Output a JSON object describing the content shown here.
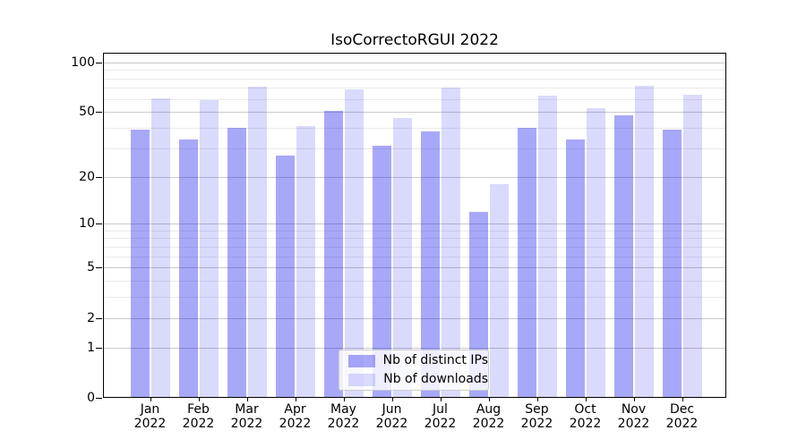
{
  "chart_data": {
    "type": "bar",
    "title": "IsoCorrectoRGUI 2022",
    "categories": [
      "Jan",
      "Feb",
      "Mar",
      "Apr",
      "May",
      "Jun",
      "Jul",
      "Aug",
      "Sep",
      "Oct",
      "Nov",
      "Dec"
    ],
    "x_tick_year": "2022",
    "series": [
      {
        "name": "Nb of distinct IPs",
        "color": "rgba(5,5,235,0.35)",
        "values": [
          39,
          34,
          40,
          27,
          51,
          31,
          38,
          12,
          40,
          34,
          48,
          39
        ]
      },
      {
        "name": "Nb of downloads",
        "color": "rgba(5,5,235,0.15)",
        "values": [
          61,
          59,
          71,
          41,
          69,
          46,
          70,
          18,
          63,
          53,
          72,
          64
        ]
      }
    ],
    "xlabel": "",
    "ylabel": "",
    "yscale": "log1p",
    "ylim": [
      0,
      115
    ],
    "y_major_ticks": [
      0,
      1,
      2,
      5,
      10,
      20,
      50,
      100
    ],
    "y_minor_ticks": [
      3,
      4,
      6,
      7,
      8,
      9,
      30,
      40,
      60,
      70,
      80,
      90
    ],
    "grid": true,
    "legend_position": "lower-center",
    "colors": {
      "grid_major": "#c9c9c9",
      "grid_minor": "#eaeaea",
      "axis": "#000000",
      "legend_border": "#cccccc"
    }
  }
}
